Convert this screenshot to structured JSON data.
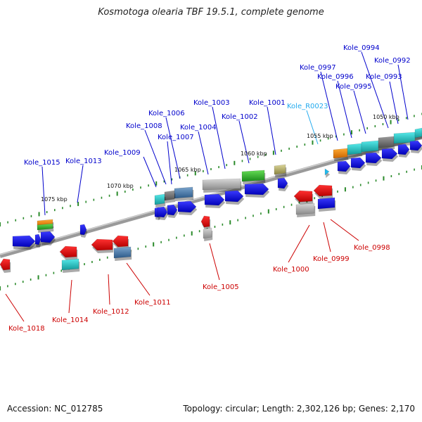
{
  "title": "Kosmotoga olearia TBF 19.5.1, complete genome",
  "accession": "Accession: NC_012785",
  "summary": "Topology: circular; Length: 2,302,126 bp; Genes: 2,170",
  "colors": {
    "forward_label": "#0000cc",
    "reverse_label": "#cc0000",
    "rna_label": "#22aaee",
    "cds": "#0000ee",
    "cds_reverse": "#ee0000",
    "cyan": "#22cccc",
    "gray": "#aaaaaa",
    "dark_gray": "#707070",
    "green": "#33bb33",
    "orange": "#ee8800",
    "steel": "#4a78a8",
    "olive": "#b8b070",
    "tick": "#2a8a2a",
    "backbone": "#888888"
  },
  "scale_labels": [
    "1050 kbp",
    "1055 kbp",
    "1060 kbp",
    "1065 kbp",
    "1070 kbp",
    "1075 kbp"
  ],
  "forward_genes": [
    "Kole_0992",
    "Kole_0993",
    "Kole_0994",
    "Kole_0995",
    "Kole_0996",
    "Kole_0997",
    "Kole_R0023",
    "Kole_1001",
    "Kole_1002",
    "Kole_1003",
    "Kole_1004",
    "Kole_1006",
    "Kole_1007",
    "Kole_1008",
    "Kole_1009",
    "Kole_1013",
    "Kole_1015"
  ],
  "reverse_genes": [
    "Kole_0998",
    "Kole_0999",
    "Kole_1000",
    "Kole_1005",
    "Kole_1011",
    "Kole_1012",
    "Kole_1014",
    "Kole_1018"
  ]
}
